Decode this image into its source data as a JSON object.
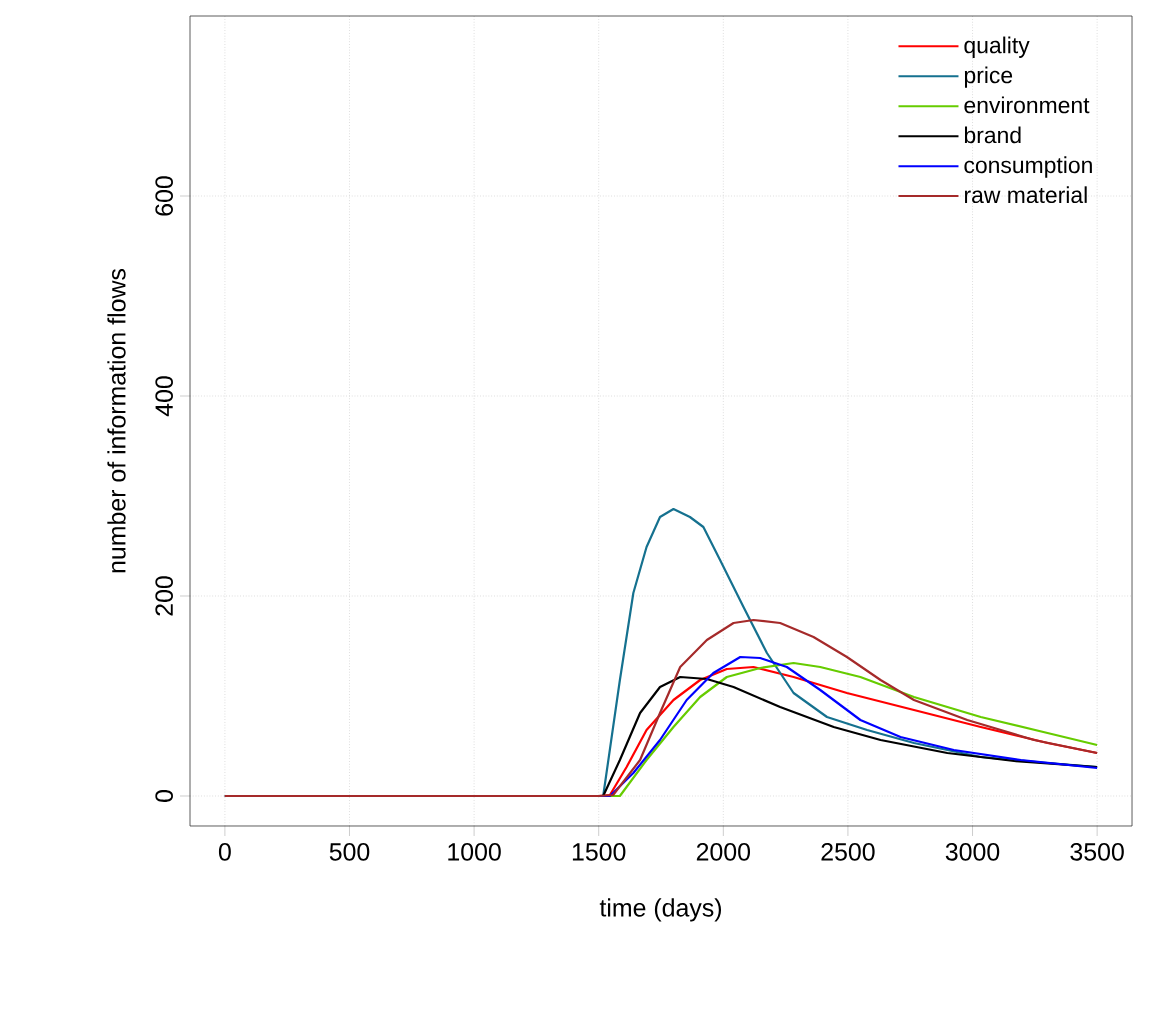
{
  "chart_data": {
    "type": "line",
    "xlabel": "time (days)",
    "ylabel": "number of information flows",
    "xlim": [
      -140,
      3640
    ],
    "ylim": [
      -30,
      780
    ],
    "xticks": [
      0,
      500,
      1000,
      1500,
      2000,
      2500,
      3000,
      3500
    ],
    "yticks": [
      0,
      200,
      400,
      600
    ],
    "grid": true,
    "legend": "top right",
    "series": [
      {
        "name": "quality",
        "color": "#ff0000",
        "x": [
          0,
          1500,
          1545,
          1612,
          1692,
          1800,
          1907,
          2014,
          2121,
          2282,
          2496,
          2765,
          3033,
          3301,
          3500
        ],
        "values": [
          0,
          0,
          1,
          29,
          66,
          96,
          116,
          127,
          129,
          119,
          103,
          86,
          69,
          53,
          43
        ]
      },
      {
        "name": "price",
        "color": "#15718f",
        "x": [
          0,
          1500,
          1518,
          1585,
          1639,
          1692,
          1746,
          1800,
          1866,
          1920,
          1987,
          2081,
          2175,
          2282,
          2416,
          2577,
          2765,
          3033,
          3301,
          3500
        ],
        "values": [
          0,
          0,
          0,
          116,
          203,
          249,
          279,
          287,
          279,
          269,
          236,
          189,
          143,
          103,
          79,
          66,
          53,
          39,
          33,
          29
        ]
      },
      {
        "name": "environment",
        "color": "#66cc00",
        "x": [
          0,
          1500,
          1585,
          1692,
          1800,
          1907,
          2014,
          2148,
          2282,
          2389,
          2550,
          2765,
          3033,
          3301,
          3500
        ],
        "values": [
          0,
          0,
          0,
          36,
          69,
          99,
          119,
          128,
          133,
          129,
          119,
          99,
          79,
          63,
          51
        ]
      },
      {
        "name": "brand",
        "color": "#000000",
        "x": [
          0,
          1500,
          1518,
          1585,
          1666,
          1746,
          1827,
          1934,
          2041,
          2228,
          2443,
          2631,
          2899,
          3167,
          3500
        ],
        "values": [
          0,
          0,
          0,
          36,
          83,
          109,
          119,
          117,
          109,
          89,
          69,
          56,
          43,
          35,
          29
        ]
      },
      {
        "name": "consumption",
        "color": "#0000ff",
        "x": [
          0,
          1500,
          1545,
          1639,
          1746,
          1853,
          1960,
          2068,
          2148,
          2255,
          2389,
          2550,
          2711,
          2925,
          3194,
          3500
        ],
        "values": [
          0,
          0,
          0,
          23,
          56,
          96,
          123,
          139,
          138,
          129,
          106,
          76,
          59,
          46,
          36,
          28
        ]
      },
      {
        "name": "raw material",
        "color": "#a52a2a",
        "x": [
          0,
          1500,
          1558,
          1666,
          1746,
          1827,
          1934,
          2041,
          2121,
          2228,
          2362,
          2496,
          2631,
          2765,
          2979,
          3247,
          3500
        ],
        "values": [
          0,
          0,
          1,
          36,
          83,
          129,
          156,
          173,
          176,
          173,
          159,
          139,
          116,
          96,
          76,
          56,
          43
        ]
      }
    ]
  }
}
